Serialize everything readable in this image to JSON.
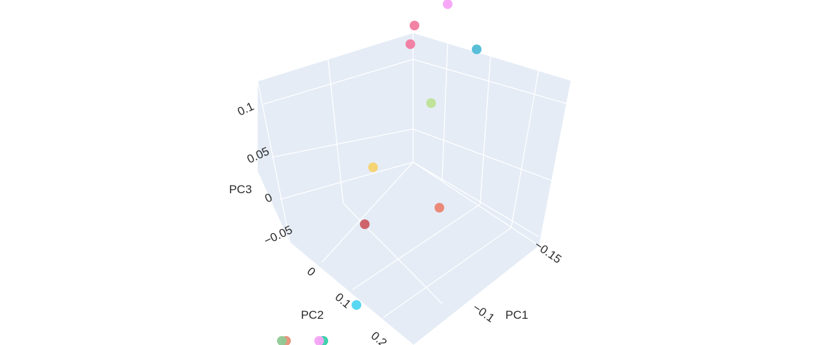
{
  "chart_data": {
    "type": "scatter3d",
    "title": "",
    "axes": {
      "x": {
        "label": "PC1",
        "ticks": [
          {
            "value": -0.15,
            "label": "−0.15"
          },
          {
            "value": -0.1,
            "label": "−0.1"
          }
        ]
      },
      "y": {
        "label": "PC2",
        "ticks": [
          {
            "value": 0,
            "label": "0"
          },
          {
            "value": 0.1,
            "label": "0.1"
          },
          {
            "value": 0.2,
            "label": "0.2"
          }
        ]
      },
      "z": {
        "label": "PC3",
        "ticks": [
          {
            "value": -0.05,
            "label": "−0.05"
          },
          {
            "value": 0,
            "label": "0"
          },
          {
            "value": 0.05,
            "label": "0.05"
          },
          {
            "value": 0.1,
            "label": "0.1"
          }
        ]
      }
    },
    "points": [
      {
        "x": -0.06,
        "y": -0.06,
        "z": 0.11,
        "color": "#F17CA0"
      },
      {
        "x": -0.06,
        "y": -0.05,
        "z": 0.1,
        "color": "#F17CA0"
      },
      {
        "x": -0.08,
        "y": -0.1,
        "z": 0.1,
        "color": "#F5A3F5"
      },
      {
        "x": -0.13,
        "y": -0.07,
        "z": 0.065,
        "color": "#4FBAD6"
      },
      {
        "x": -0.09,
        "y": -0.04,
        "z": 0.045,
        "color": "#BDE395"
      },
      {
        "x": -0.04,
        "y": 0.0,
        "z": 0.025,
        "color": "#F6D36E"
      },
      {
        "x": -0.05,
        "y": 0.04,
        "z": 0.0,
        "color": "#CC5C63"
      },
      {
        "x": -0.12,
        "y": 0.0,
        "z": -0.03,
        "color": "#EB8472"
      },
      {
        "x": -0.08,
        "y": 0.12,
        "z": -0.02,
        "color": "#4ED5F0"
      },
      {
        "x": -0.06,
        "y": 0.16,
        "z": -0.03,
        "color": "#35D0A8"
      },
      {
        "x": -0.06,
        "y": 0.17,
        "z": -0.04,
        "color": "#F5A3F5"
      },
      {
        "x": -0.04,
        "y": 0.21,
        "z": -0.05,
        "color": "#E79078"
      },
      {
        "x": -0.04,
        "y": 0.22,
        "z": -0.055,
        "color": "#8FC995"
      }
    ]
  }
}
